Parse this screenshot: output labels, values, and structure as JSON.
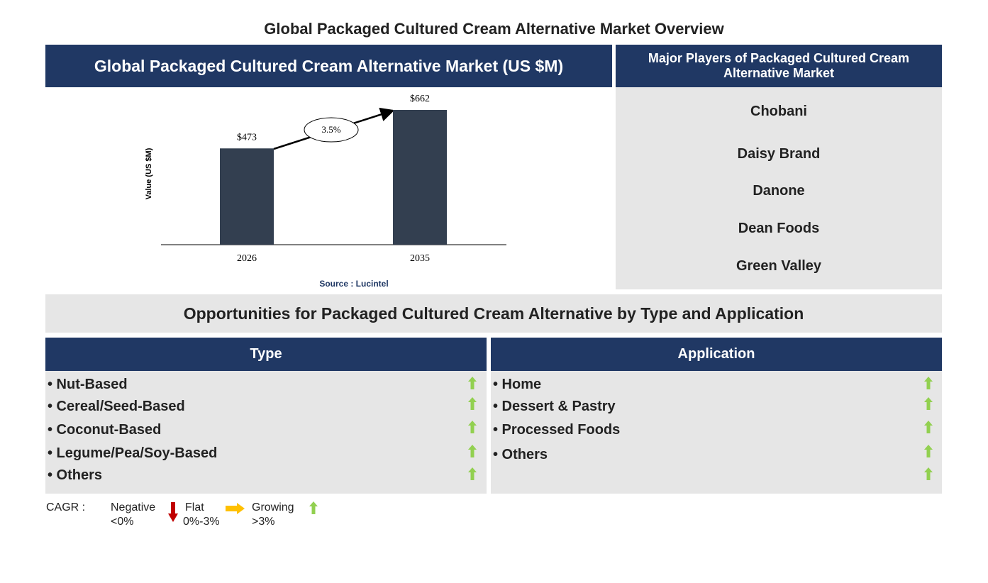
{
  "title": "Global Packaged Cultured Cream Alternative Market Overview",
  "chart_data": {
    "type": "bar",
    "title": "Global Packaged Cultured Cream Alternative Market (US $M)",
    "y_label": "Value (US $M)",
    "categories": [
      "2026",
      "2035"
    ],
    "values": [
      473,
      662
    ],
    "value_labels": [
      "$473",
      "$662"
    ],
    "color": "#333f50",
    "annotation": "3.5%",
    "source": "Source : Lucintel"
  },
  "players": {
    "title": "Major Players of Packaged Cultured Cream Alternative Market",
    "items": [
      "Chobani",
      "Daisy Brand",
      "Danone",
      "Dean Foods",
      "Green Valley"
    ]
  },
  "opportunities": {
    "title": "Opportunities for Packaged Cultured Cream Alternative by Type and Application",
    "type": {
      "title": "Type",
      "items": [
        "• Nut-Based",
        "• Cereal/Seed-Based",
        "• Coconut-Based",
        "• Legume/Pea/Soy-Based",
        "• Others"
      ]
    },
    "application": {
      "title": "Application",
      "items": [
        "• Home",
        "• Dessert & Pastry",
        "• Processed Foods",
        "• Others"
      ]
    }
  },
  "legend": {
    "label": "CAGR :",
    "negative": "Negative",
    "negative_range": "<0%",
    "flat": "Flat",
    "flat_range": "0%-3%",
    "growing": "Growing",
    "growing_range": ">3%"
  }
}
